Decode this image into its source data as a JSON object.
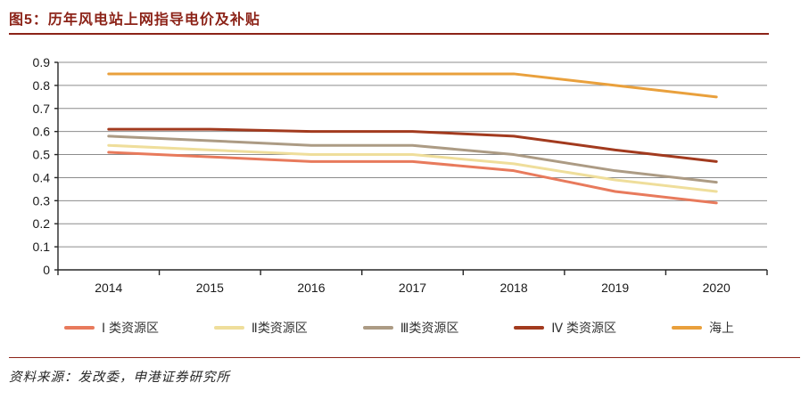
{
  "header": {
    "title": "图5：历年风电站上网指导电价及补贴"
  },
  "colors": {
    "accent_red": "#8C2318",
    "axis": "#262626",
    "grid": "#8C8C8C",
    "tick_text": "#1a1a1a"
  },
  "footer": {
    "source": "资料来源：发改委，申港证券研究所"
  },
  "chart_data": {
    "type": "line",
    "title": "",
    "xlabel": "",
    "ylabel": "",
    "categories": [
      "2014",
      "2015",
      "2016",
      "2017",
      "2018",
      "2019",
      "2020"
    ],
    "series": [
      {
        "name": "Ⅰ 类资源区",
        "color": "#E87A5C",
        "values": [
          0.51,
          0.49,
          0.47,
          0.47,
          0.43,
          0.34,
          0.29
        ]
      },
      {
        "name": "Ⅱ类资源区",
        "color": "#EFDE9B",
        "values": [
          0.54,
          0.52,
          0.5,
          0.5,
          0.46,
          0.39,
          0.34
        ]
      },
      {
        "name": "Ⅲ类资源区",
        "color": "#AC9B84",
        "values": [
          0.58,
          0.56,
          0.54,
          0.54,
          0.5,
          0.43,
          0.38
        ]
      },
      {
        "name": "Ⅳ 类资源区",
        "color": "#A23A1E",
        "values": [
          0.61,
          0.61,
          0.6,
          0.6,
          0.58,
          0.52,
          0.47
        ]
      },
      {
        "name": "海上",
        "color": "#E9A03C",
        "values": [
          0.85,
          0.85,
          0.85,
          0.85,
          0.85,
          0.8,
          0.75
        ]
      }
    ],
    "ylim": [
      0,
      0.9
    ],
    "yticks": [
      0,
      0.1,
      0.2,
      0.3,
      0.4,
      0.5,
      0.6,
      0.7,
      0.8,
      0.9
    ],
    "ytick_labels": [
      "0",
      "0.1",
      "0.2",
      "0.3",
      "0.4",
      "0.5",
      "0.6",
      "0.7",
      "0.8",
      "0.9"
    ],
    "grid": true,
    "legend_position": "bottom"
  }
}
